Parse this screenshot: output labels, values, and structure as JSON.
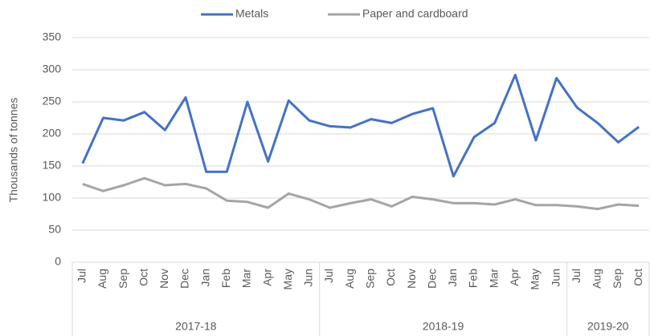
{
  "chart_data": {
    "type": "line",
    "y_label": "Thousands of tonnes",
    "category_groups": [
      {
        "label": "2017-18",
        "categories": [
          "Jul",
          "Aug",
          "Sep",
          "Oct",
          "Nov",
          "Dec",
          "Jan",
          "Feb",
          "Mar",
          "Apr",
          "May",
          "Jun"
        ]
      },
      {
        "label": "2018-19",
        "categories": [
          "Jul",
          "Aug",
          "Sep",
          "Oct",
          "Nov",
          "Dec",
          "Jan",
          "Feb",
          "Mar",
          "Apr",
          "May",
          "Jun"
        ]
      },
      {
        "label": "2019-20",
        "categories": [
          "Jul",
          "Aug",
          "Sep",
          "Oct"
        ]
      }
    ],
    "series": [
      {
        "name": "Metals",
        "color": "#4472c4",
        "values": [
          154,
          225,
          221,
          234,
          206,
          257,
          141,
          141,
          250,
          157,
          252,
          221,
          212,
          210,
          223,
          217,
          231,
          240,
          134,
          195,
          217,
          292,
          190,
          287,
          241,
          217,
          187,
          211
        ]
      },
      {
        "name": "Paper and cardboard",
        "color": "#a5a5a5",
        "values": [
          122,
          111,
          120,
          131,
          120,
          122,
          115,
          96,
          94,
          85,
          107,
          98,
          85,
          92,
          98,
          87,
          102,
          98,
          92,
          92,
          90,
          98,
          89,
          89,
          87,
          83,
          90,
          88
        ]
      }
    ],
    "ylim": [
      0,
      350
    ],
    "yticks": [
      0,
      50,
      100,
      150,
      200,
      250,
      300,
      350
    ],
    "grid": true,
    "legend": "top"
  }
}
